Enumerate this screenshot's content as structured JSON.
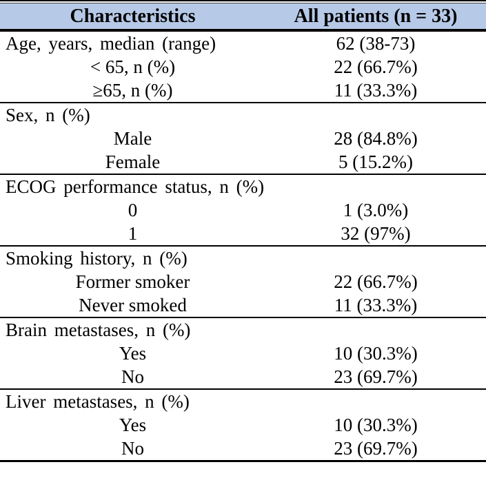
{
  "table": {
    "header": {
      "characteristics_label": "Characteristics",
      "patients_label": "All patients (n = 33)",
      "header_bg_color": "#b6c9e7"
    },
    "rows": [
      {
        "label": "Age, years, median (range)",
        "value": "62 (38-73)",
        "indent": false,
        "rule_above": false
      },
      {
        "label": "< 65, n (%)",
        "value": "22 (66.7%)",
        "indent": true,
        "rule_above": false
      },
      {
        "label": "≥65, n (%)",
        "value": "11 (33.3%)",
        "indent": true,
        "rule_above": false
      },
      {
        "label": "Sex, n (%)",
        "value": "",
        "indent": false,
        "rule_above": true
      },
      {
        "label": "Male",
        "value": "28 (84.8%)",
        "indent": true,
        "rule_above": false
      },
      {
        "label": "Female",
        "value": "5 (15.2%)",
        "indent": true,
        "rule_above": false
      },
      {
        "label": "ECOG performance status, n (%)",
        "value": "",
        "indent": false,
        "rule_above": true
      },
      {
        "label": "0",
        "value": "1 (3.0%)",
        "indent": true,
        "rule_above": false
      },
      {
        "label": "1",
        "value": "32 (97%)",
        "indent": true,
        "rule_above": false
      },
      {
        "label": "Smoking history, n (%)",
        "value": "",
        "indent": false,
        "rule_above": true
      },
      {
        "label": "Former smoker",
        "value": "22 (66.7%)",
        "indent": true,
        "rule_above": false
      },
      {
        "label": "Never smoked",
        "value": "11 (33.3%)",
        "indent": true,
        "rule_above": false
      },
      {
        "label": "Brain metastases, n (%)",
        "value": "",
        "indent": false,
        "rule_above": true
      },
      {
        "label": "Yes",
        "value": "10 (30.3%)",
        "indent": true,
        "rule_above": false
      },
      {
        "label": "No",
        "value": "23 (69.7%)",
        "indent": true,
        "rule_above": false
      },
      {
        "label": "Liver metastases, n (%)",
        "value": "",
        "indent": false,
        "rule_above": true
      },
      {
        "label": "Yes",
        "value": "10 (30.3%)",
        "indent": true,
        "rule_above": false
      },
      {
        "label": "No",
        "value": "23 (69.7%)",
        "indent": true,
        "rule_above": false
      }
    ]
  }
}
